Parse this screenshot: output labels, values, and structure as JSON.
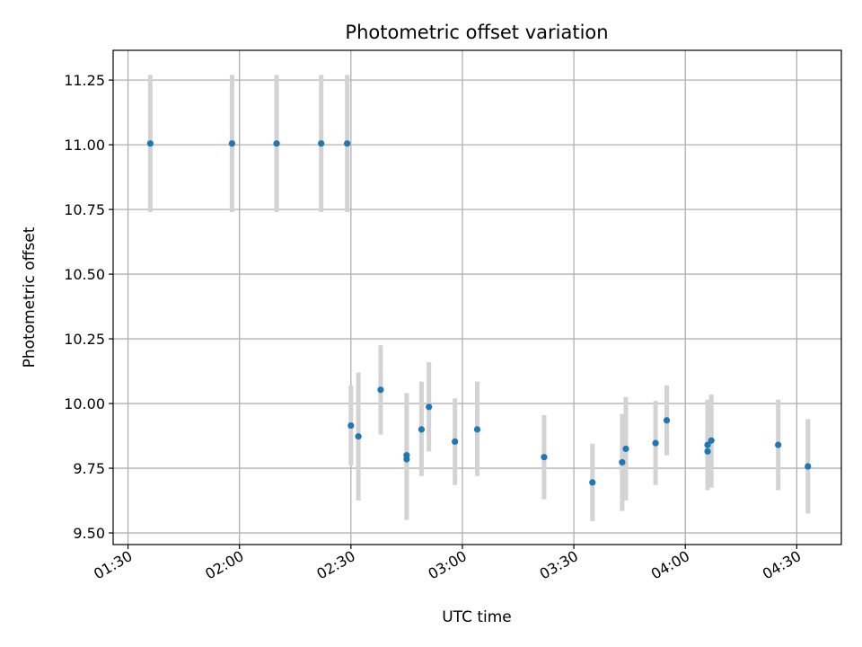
{
  "chart_data": {
    "type": "scatter",
    "title": "Photometric offset variation",
    "xlabel": "UTC time",
    "ylabel": "Photometric offset",
    "xlim": [
      "01:26",
      "04:42"
    ],
    "ylim": [
      9.455,
      11.365
    ],
    "x_ticks": [
      "01:30",
      "02:00",
      "02:30",
      "03:00",
      "03:30",
      "04:00",
      "04:30"
    ],
    "y_ticks": [
      "9.50",
      "9.75",
      "10.00",
      "10.25",
      "10.50",
      "10.75",
      "11.00",
      "11.25"
    ],
    "grid": true,
    "colors": {
      "point": "#1f77b4",
      "errorbar": "#d3d3d3",
      "grid": "#b0b0b0"
    },
    "points": [
      {
        "x": "01:36",
        "y": 11.005,
        "ylo": 10.74,
        "yhi": 11.27
      },
      {
        "x": "01:58",
        "y": 11.005,
        "ylo": 10.74,
        "yhi": 11.27
      },
      {
        "x": "02:10",
        "y": 11.005,
        "ylo": 10.74,
        "yhi": 11.27
      },
      {
        "x": "02:22",
        "y": 11.005,
        "ylo": 10.74,
        "yhi": 11.27
      },
      {
        "x": "02:29",
        "y": 11.005,
        "ylo": 10.74,
        "yhi": 11.27
      },
      {
        "x": "02:30",
        "y": 9.915,
        "ylo": 9.76,
        "yhi": 10.07
      },
      {
        "x": "02:32",
        "y": 9.873,
        "ylo": 9.625,
        "yhi": 10.12
      },
      {
        "x": "02:38",
        "y": 10.053,
        "ylo": 9.88,
        "yhi": 10.225
      },
      {
        "x": "02:45",
        "y": 9.785,
        "ylo": 9.55,
        "yhi": 10.015
      },
      {
        "x": "02:45",
        "y": 9.8,
        "ylo": 9.56,
        "yhi": 10.04
      },
      {
        "x": "02:49",
        "y": 9.9,
        "ylo": 9.72,
        "yhi": 10.085
      },
      {
        "x": "02:51",
        "y": 9.987,
        "ylo": 9.815,
        "yhi": 10.16
      },
      {
        "x": "02:58",
        "y": 9.853,
        "ylo": 9.685,
        "yhi": 10.02
      },
      {
        "x": "03:04",
        "y": 9.9,
        "ylo": 9.72,
        "yhi": 10.085
      },
      {
        "x": "03:22",
        "y": 9.793,
        "ylo": 9.63,
        "yhi": 9.955
      },
      {
        "x": "03:35",
        "y": 9.695,
        "ylo": 9.545,
        "yhi": 9.845
      },
      {
        "x": "03:43",
        "y": 9.773,
        "ylo": 9.585,
        "yhi": 9.96
      },
      {
        "x": "03:44",
        "y": 9.825,
        "ylo": 9.625,
        "yhi": 10.025
      },
      {
        "x": "03:52",
        "y": 9.847,
        "ylo": 9.685,
        "yhi": 10.01
      },
      {
        "x": "03:55",
        "y": 9.935,
        "ylo": 9.8,
        "yhi": 10.07
      },
      {
        "x": "04:06",
        "y": 9.815,
        "ylo": 9.68,
        "yhi": 9.95
      },
      {
        "x": "04:06",
        "y": 9.84,
        "ylo": 9.665,
        "yhi": 10.015
      },
      {
        "x": "04:07",
        "y": 9.857,
        "ylo": 9.675,
        "yhi": 10.035
      },
      {
        "x": "04:25",
        "y": 9.84,
        "ylo": 9.665,
        "yhi": 10.015
      },
      {
        "x": "04:33",
        "y": 9.757,
        "ylo": 9.575,
        "yhi": 9.94
      }
    ]
  }
}
